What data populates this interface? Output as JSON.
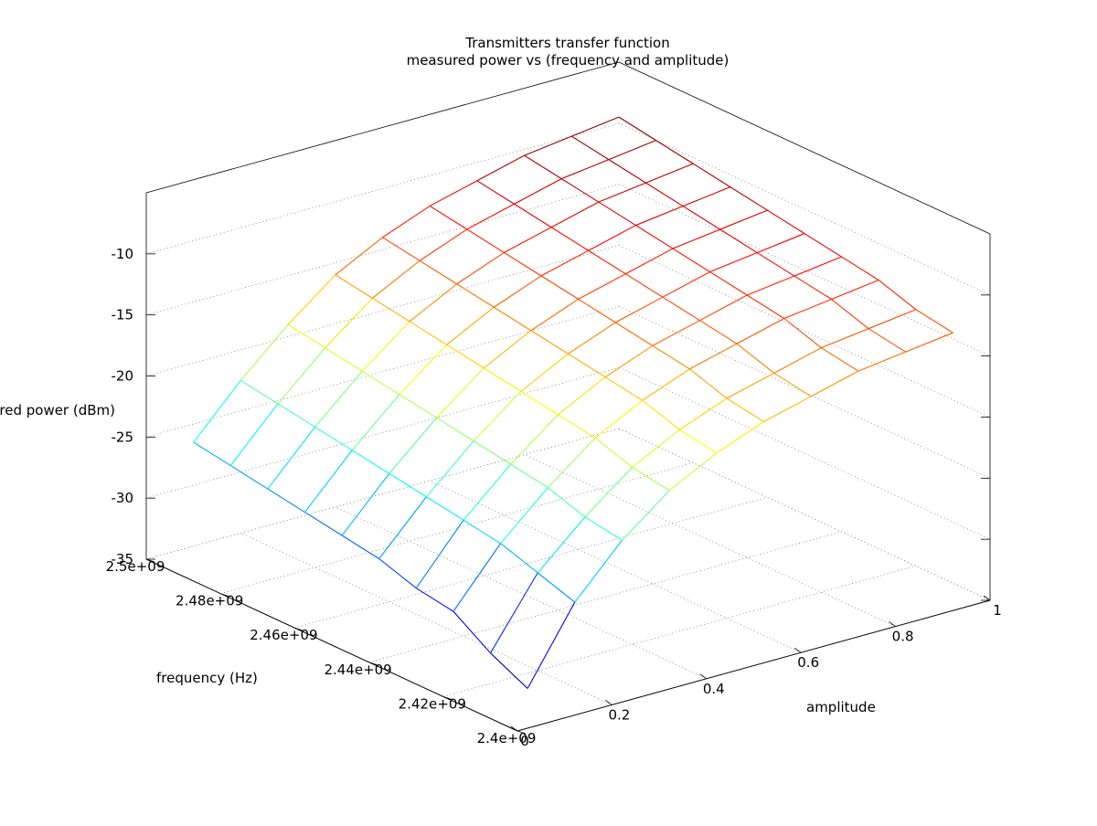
{
  "chart_data": {
    "type": "surface3d",
    "title": "Transmitters transfer function",
    "subtitle": "measured power vs (frequency and amplitude)",
    "xlabel": "amplitude",
    "ylabel": "frequency (Hz)",
    "zlabel": "measured power (dBm)",
    "xlim": [
      0,
      1
    ],
    "ylim": [
      2400000000.0,
      2500000000.0
    ],
    "zlim": [
      -35,
      -5
    ],
    "x_ticks": [
      "0",
      "0.2",
      "0.4",
      "0.6",
      "0.8",
      "1"
    ],
    "y_ticks": [
      "2.4e+09",
      "2.42e+09",
      "2.44e+09",
      "2.46e+09",
      "2.48e+09",
      "2.5e+09"
    ],
    "z_ticks": [
      "-35",
      "-30",
      "-25",
      "-20",
      "-15",
      "-10"
    ],
    "grid": true,
    "x": [
      0.1,
      0.2,
      0.3,
      0.4,
      0.5,
      0.6,
      0.7,
      0.8,
      0.9,
      1.0
    ],
    "y": [
      2410000000.0,
      2420000000.0,
      2430000000.0,
      2440000000.0,
      2450000000.0,
      2460000000.0,
      2470000000.0,
      2480000000.0,
      2490000000.0,
      2500000000.0
    ],
    "z": [
      [
        -34.0,
        -28.0,
        -24.0,
        -21.0,
        -19.0,
        -17.5,
        -16.5,
        -15.5,
        -15.0,
        -14.5
      ],
      [
        -32.5,
        -27.0,
        -23.5,
        -20.5,
        -18.5,
        -17.0,
        -16.0,
        -15.0,
        -14.5,
        -14.0
      ],
      [
        -30.5,
        -26.0,
        -22.5,
        -19.5,
        -17.5,
        -16.0,
        -15.0,
        -14.0,
        -13.5,
        -13.0
      ],
      [
        -30.0,
        -25.5,
        -22.0,
        -19.0,
        -17.0,
        -15.5,
        -14.5,
        -13.5,
        -13.0,
        -12.5
      ],
      [
        -29.0,
        -25.0,
        -21.5,
        -18.5,
        -16.5,
        -15.0,
        -14.0,
        -13.0,
        -12.5,
        -12.0
      ],
      [
        -28.5,
        -24.5,
        -21.0,
        -18.0,
        -16.0,
        -14.5,
        -13.5,
        -12.5,
        -12.0,
        -11.5
      ],
      [
        -28.0,
        -24.0,
        -20.5,
        -17.5,
        -15.5,
        -14.0,
        -13.0,
        -12.0,
        -11.5,
        -11.0
      ],
      [
        -27.5,
        -23.5,
        -20.0,
        -17.0,
        -15.0,
        -13.5,
        -12.5,
        -11.5,
        -11.0,
        -10.5
      ],
      [
        -27.0,
        -23.0,
        -19.5,
        -16.5,
        -14.5,
        -13.0,
        -12.0,
        -11.0,
        -10.5,
        -10.0
      ],
      [
        -26.5,
        -22.5,
        -19.0,
        -16.0,
        -14.0,
        -12.5,
        -11.5,
        -10.5,
        -10.0,
        -9.5
      ]
    ]
  }
}
